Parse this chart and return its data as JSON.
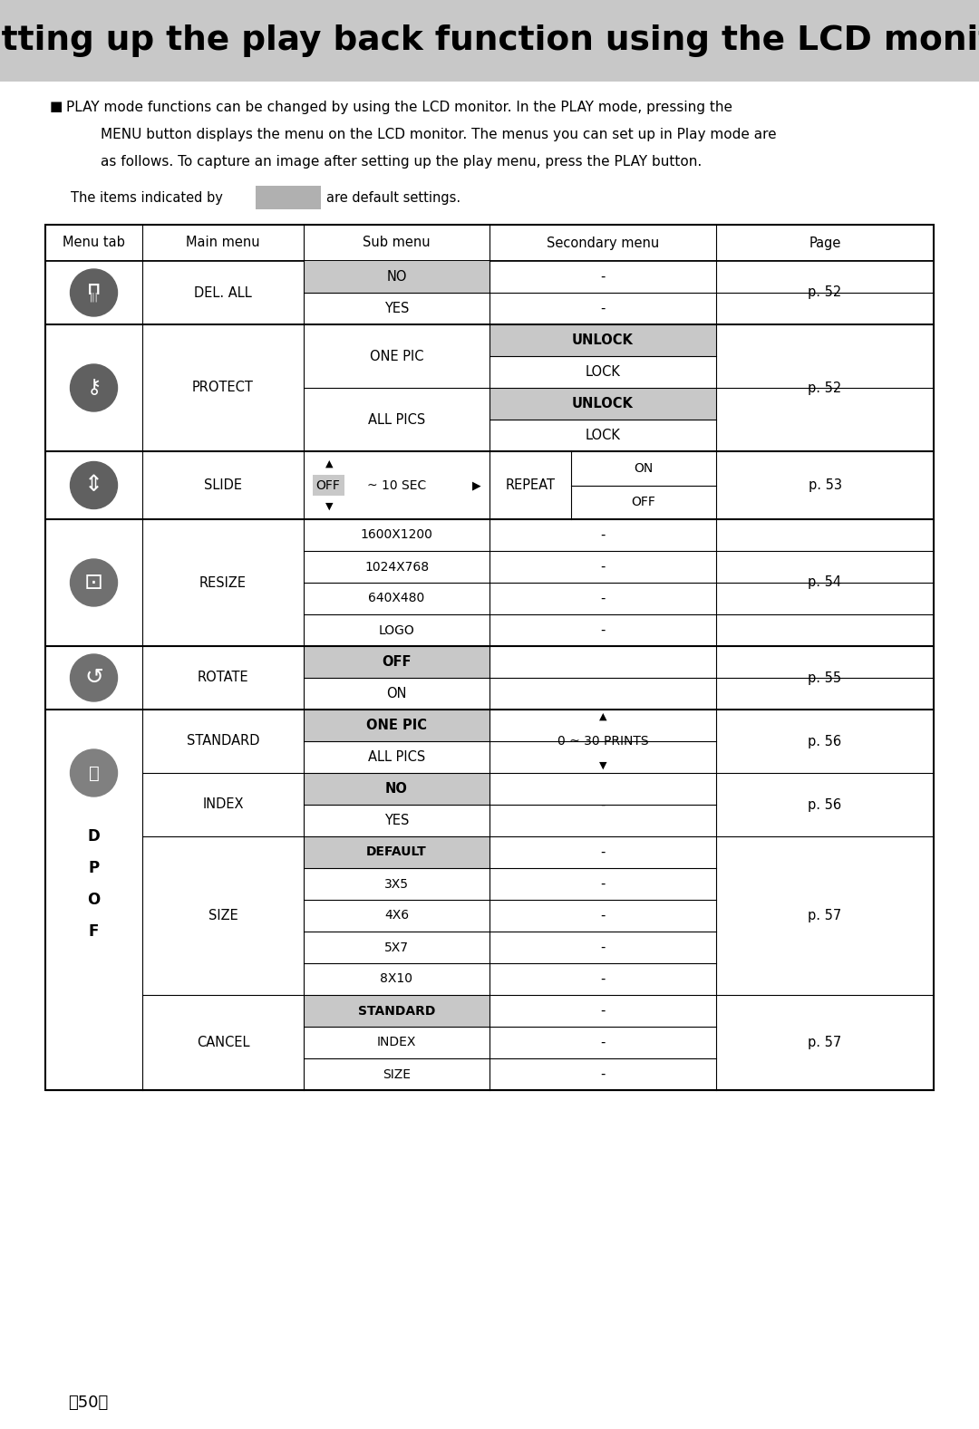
{
  "title": "Setting up the play back function using the LCD monitor",
  "body_line1": "PLAY mode functions can be changed by using the LCD monitor. In the PLAY mode, pressing the",
  "body_line2": "MENU button displays the menu on the LCD monitor. The menus you can set up in Play mode are",
  "body_line3": "as follows. To capture an image after setting up the play menu, press the PLAY button.",
  "default_note_pre": "The items indicated by",
  "default_note_post": "are default settings.",
  "col_headers": [
    "Menu tab",
    "Main menu",
    "Sub menu",
    "Secondary menu",
    "Page"
  ],
  "page_footer": "〈50〉",
  "title_bg": "#c8c8c8",
  "highlight_color": "#c8c8c8",
  "swatch_color": "#b0b0b0",
  "icon_color": "#707070",
  "icon_dark": "#505050"
}
